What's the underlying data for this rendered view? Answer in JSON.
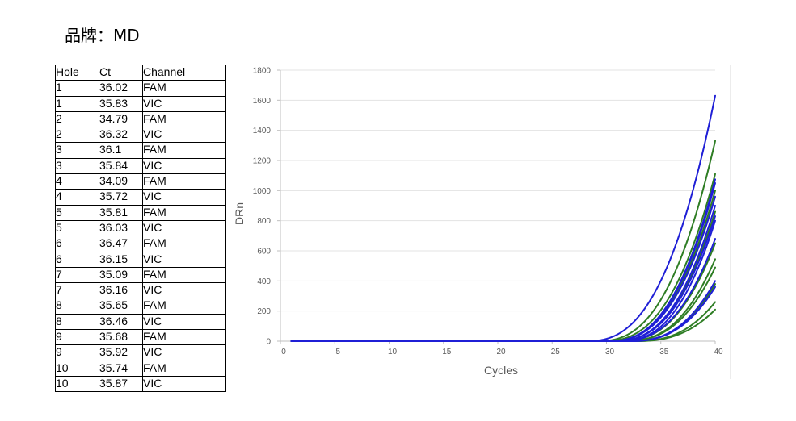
{
  "header": {
    "brand": "品牌：MD"
  },
  "table": {
    "headers": [
      "Hole",
      "Ct",
      "Channel"
    ],
    "rows": [
      [
        "1",
        "36.02",
        "FAM"
      ],
      [
        "1",
        "35.83",
        "VIC"
      ],
      [
        "2",
        "34.79",
        "FAM"
      ],
      [
        "2",
        "36.32",
        "VIC"
      ],
      [
        "3",
        "36.1",
        "FAM"
      ],
      [
        "3",
        "35.84",
        "VIC"
      ],
      [
        "4",
        "34.09",
        "FAM"
      ],
      [
        "4",
        "35.72",
        "VIC"
      ],
      [
        "5",
        "35.81",
        "FAM"
      ],
      [
        "5",
        "36.03",
        "VIC"
      ],
      [
        "6",
        "36.47",
        "FAM"
      ],
      [
        "6",
        "36.15",
        "VIC"
      ],
      [
        "7",
        "35.09",
        "FAM"
      ],
      [
        "7",
        "36.16",
        "VIC"
      ],
      [
        "8",
        "35.65",
        "FAM"
      ],
      [
        "8",
        "36.46",
        "VIC"
      ],
      [
        "9",
        "35.68",
        "FAM"
      ],
      [
        "9",
        "35.92",
        "VIC"
      ],
      [
        "10",
        "35.74",
        "FAM"
      ],
      [
        "10",
        "35.87",
        "VIC"
      ]
    ]
  },
  "chart_data": {
    "type": "line",
    "title": "",
    "xlabel": "Cycles",
    "ylabel": "DRn",
    "xlim": [
      0,
      40
    ],
    "ylim": [
      0,
      1800
    ],
    "xticks": [
      "0",
      "5",
      "10",
      "15",
      "20",
      "25",
      "30",
      "35",
      "40"
    ],
    "yticks": [
      "0",
      "200",
      "400",
      "600",
      "800",
      "1000",
      "1200",
      "1400",
      "1600",
      "1800"
    ],
    "grid": "horizontal",
    "legend": "none",
    "colors": {
      "FAM": "#1f1fd6",
      "VIC": "#2e7d24"
    },
    "series": [
      {
        "channel": "FAM",
        "end_value": 1630,
        "onset_cycle": 28
      },
      {
        "channel": "VIC",
        "end_value": 1330,
        "onset_cycle": 29
      },
      {
        "channel": "VIC",
        "end_value": 1110,
        "onset_cycle": 29.5
      },
      {
        "channel": "FAM",
        "end_value": 1075,
        "onset_cycle": 30
      },
      {
        "channel": "FAM",
        "end_value": 1050,
        "onset_cycle": 30
      },
      {
        "channel": "VIC",
        "end_value": 1000,
        "onset_cycle": 30
      },
      {
        "channel": "FAM",
        "end_value": 960,
        "onset_cycle": 30
      },
      {
        "channel": "FAM",
        "end_value": 900,
        "onset_cycle": 30.5
      },
      {
        "channel": "VIC",
        "end_value": 860,
        "onset_cycle": 30.5
      },
      {
        "channel": "FAM",
        "end_value": 830,
        "onset_cycle": 30.5
      },
      {
        "channel": "FAM",
        "end_value": 800,
        "onset_cycle": 31
      },
      {
        "channel": "FAM",
        "end_value": 680,
        "onset_cycle": 31
      },
      {
        "channel": "VIC",
        "end_value": 650,
        "onset_cycle": 31
      },
      {
        "channel": "VIC",
        "end_value": 545,
        "onset_cycle": 31.5
      },
      {
        "channel": "VIC",
        "end_value": 490,
        "onset_cycle": 31.5
      },
      {
        "channel": "FAM",
        "end_value": 400,
        "onset_cycle": 32
      },
      {
        "channel": "VIC",
        "end_value": 380,
        "onset_cycle": 32
      },
      {
        "channel": "FAM",
        "end_value": 360,
        "onset_cycle": 32
      },
      {
        "channel": "VIC",
        "end_value": 260,
        "onset_cycle": 32.5
      },
      {
        "channel": "VIC",
        "end_value": 210,
        "onset_cycle": 32.5
      }
    ]
  }
}
